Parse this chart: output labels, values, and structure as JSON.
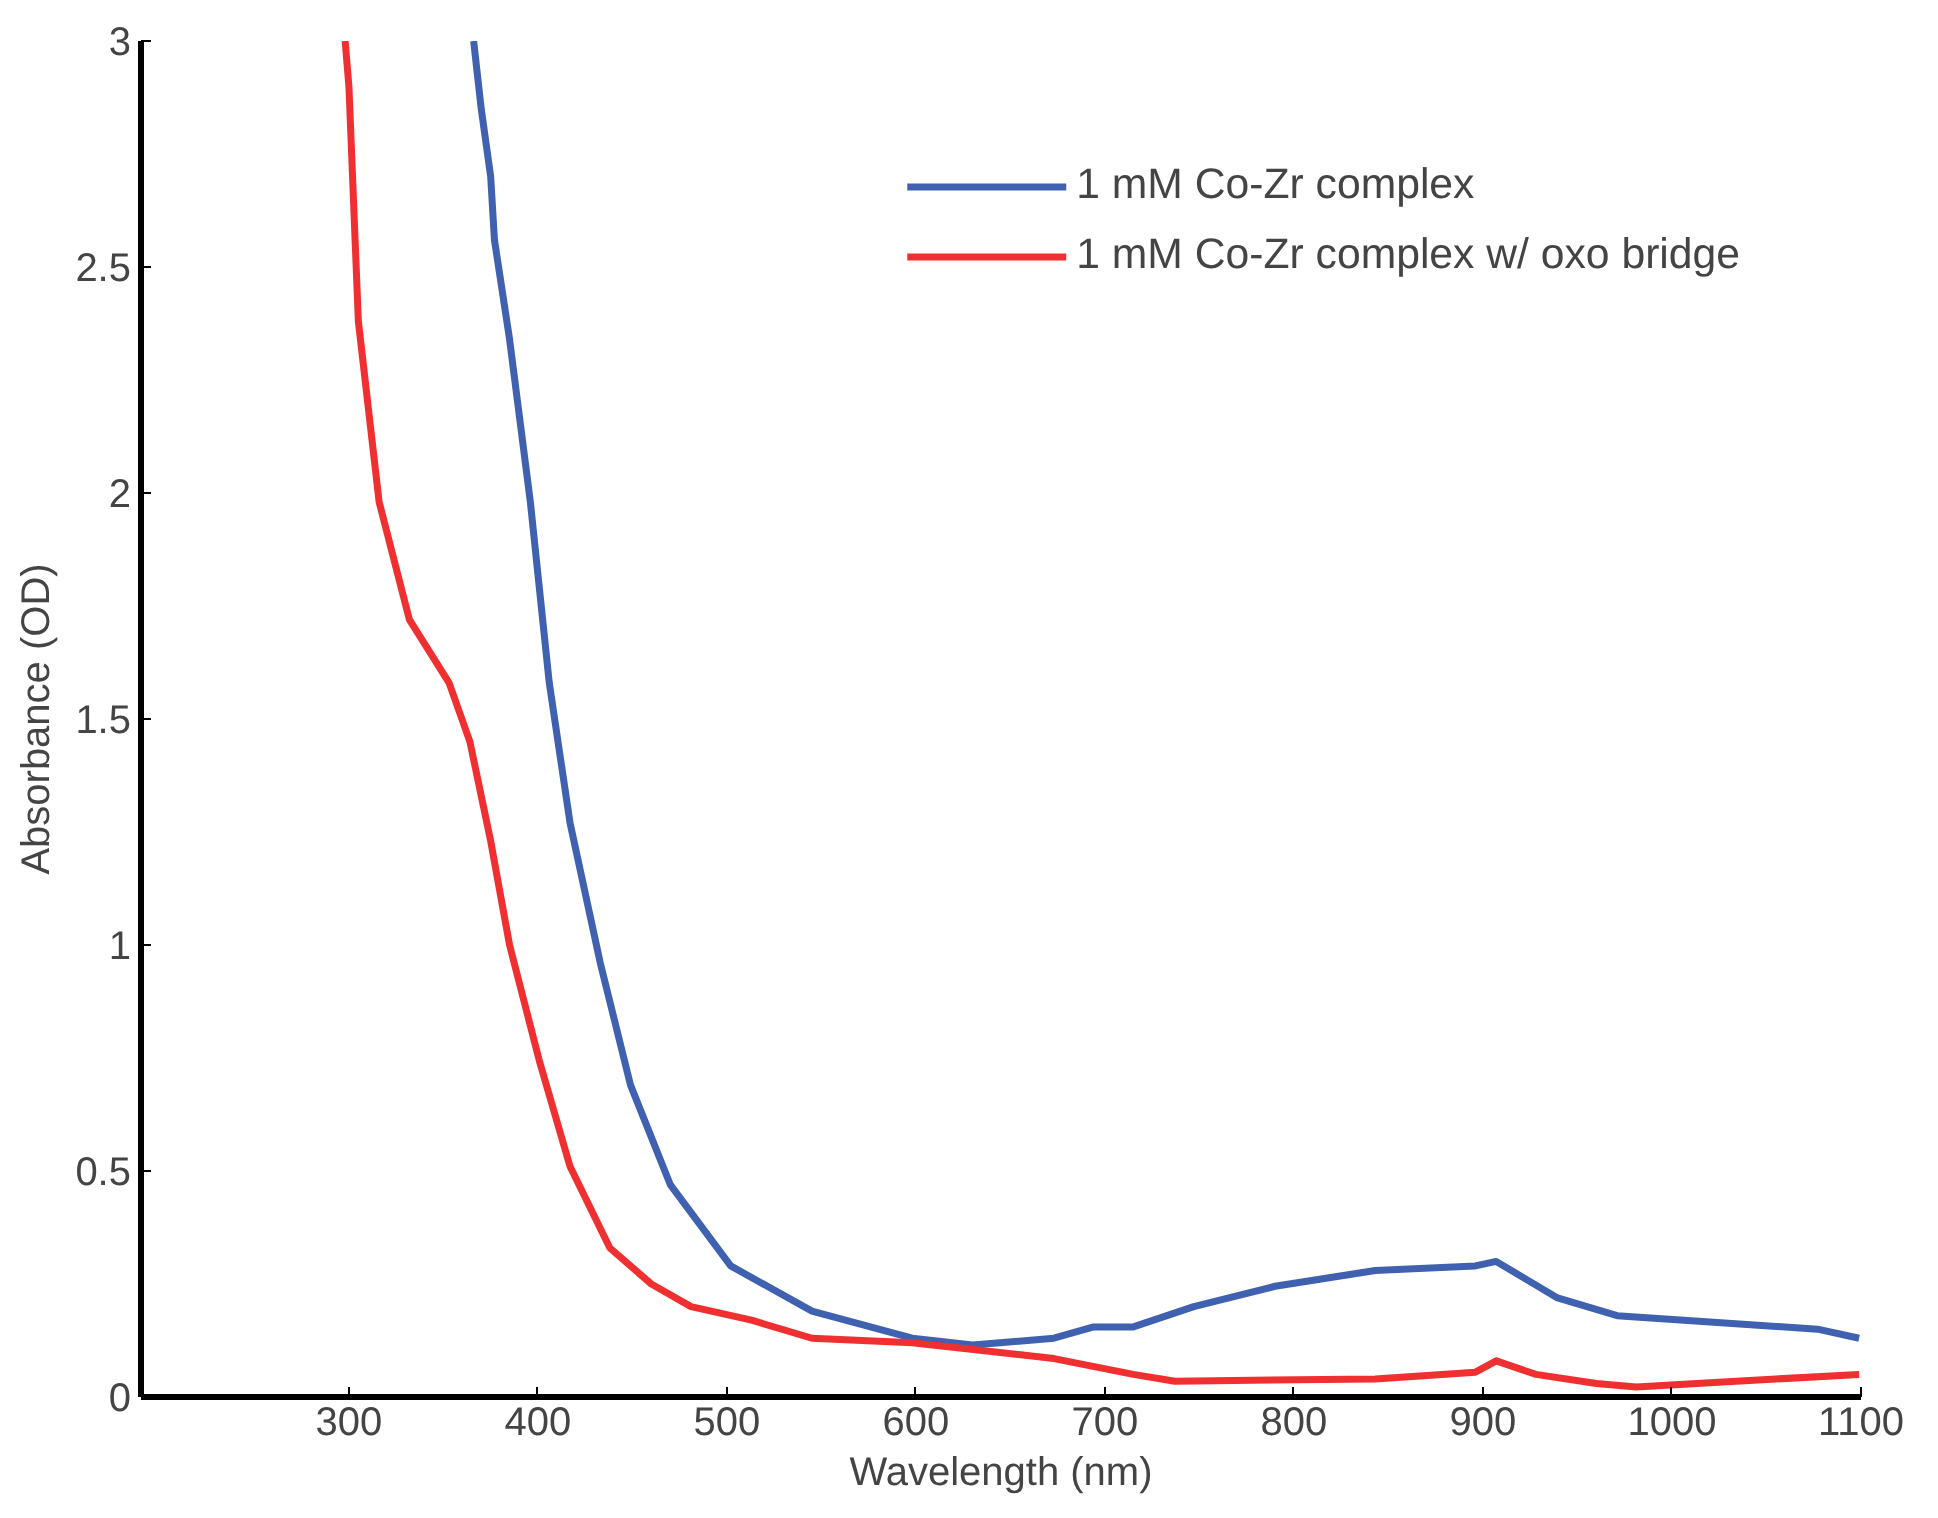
{
  "chart_data": {
    "type": "line",
    "xlabel": "Wavelength (nm)",
    "ylabel": "Absorbance (OD)",
    "xlim": [
      190,
      1100
    ],
    "ylim": [
      0,
      3
    ],
    "xticks": [
      300,
      400,
      500,
      600,
      700,
      800,
      900,
      1000,
      1100
    ],
    "yticks": [
      0,
      0.5,
      1,
      1.5,
      2,
      2.5,
      3
    ],
    "grid": false,
    "legend": "top right",
    "line_style": "solid",
    "series": [
      {
        "name": "1 mM Co-Zr complex",
        "color": "#4060b0",
        "x": [
          366,
          370,
          375,
          377,
          385,
          396,
          406,
          417,
          433,
          449,
          470,
          502,
          545,
          598,
          630,
          673,
          694,
          715,
          747,
          790,
          843,
          896,
          907,
          939,
          971,
          1024,
          1077,
          1099
        ],
        "values": [
          3.0,
          2.85,
          2.7,
          2.56,
          2.34,
          1.98,
          1.58,
          1.27,
          0.96,
          0.69,
          0.47,
          0.29,
          0.19,
          0.13,
          0.115,
          0.13,
          0.155,
          0.155,
          0.2,
          0.245,
          0.28,
          0.29,
          0.3,
          0.22,
          0.18,
          0.165,
          0.15,
          0.13
        ]
      },
      {
        "name": "1 mM Co-Zr complex w/ oxo bridge",
        "color": "#f03030",
        "x": [
          298,
          300,
          305,
          316,
          332,
          353,
          364,
          375,
          385,
          401,
          417,
          438,
          460,
          481,
          513,
          545,
          598,
          673,
          715,
          737,
          843,
          896,
          907,
          928,
          960,
          981,
          1034,
          1099
        ],
        "values": [
          3.0,
          2.9,
          2.38,
          1.98,
          1.72,
          1.58,
          1.45,
          1.23,
          1.0,
          0.74,
          0.51,
          0.33,
          0.25,
          0.2,
          0.17,
          0.13,
          0.12,
          0.085,
          0.05,
          0.035,
          0.04,
          0.055,
          0.08,
          0.05,
          0.03,
          0.022,
          0.035,
          0.05
        ]
      }
    ]
  }
}
